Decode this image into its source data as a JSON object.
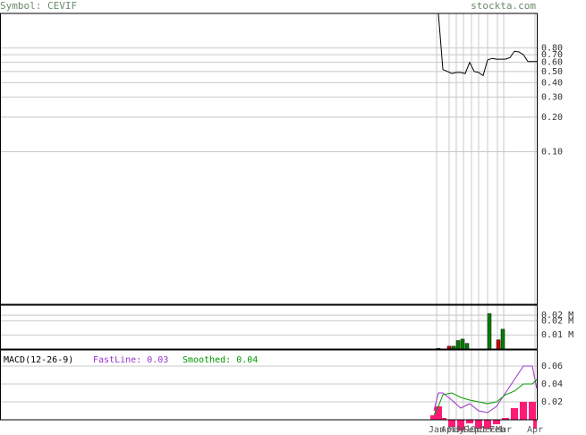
{
  "header": {
    "symbol": "Symbol: CEVIF",
    "site": "stockta.com"
  },
  "chart_data": [
    {
      "type": "line",
      "log_scale": true,
      "grid": true,
      "color": "#000000",
      "xlim": [
        0,
        120
      ],
      "x": [
        98,
        99,
        100,
        101,
        102,
        103,
        104,
        105,
        106,
        107,
        108,
        109,
        110,
        111,
        112,
        113,
        114,
        115,
        116,
        117,
        118,
        119,
        120
      ],
      "values": [
        1.6,
        0.52,
        0.5,
        0.48,
        0.49,
        0.49,
        0.48,
        0.6,
        0.5,
        0.49,
        0.46,
        0.63,
        0.65,
        0.64,
        0.64,
        0.64,
        0.66,
        0.75,
        0.74,
        0.7,
        0.61,
        0.61,
        0.61
      ],
      "ylim": [
        0.0047,
        1.6
      ],
      "yticks": [
        {
          "value": 0.8,
          "label": "0.80"
        },
        {
          "value": 0.7,
          "label": "0.70"
        },
        {
          "value": 0.6,
          "label": "0.60"
        },
        {
          "value": 0.5,
          "label": "0.50"
        },
        {
          "value": 0.4,
          "label": "0.40"
        },
        {
          "value": 0.3,
          "label": "0.30"
        },
        {
          "value": 0.2,
          "label": "0.20"
        },
        {
          "value": 0.1,
          "label": "0.10"
        }
      ]
    },
    {
      "type": "bar",
      "grid": true,
      "xlim": [
        0,
        120
      ],
      "x": [
        98,
        100.4,
        101.4,
        102.4,
        103.4,
        104.4,
        109.4,
        111.4,
        112.4
      ],
      "values": [
        0.0005,
        0.002,
        0.002,
        0.006,
        0.007,
        0.004,
        0.025,
        0.0065,
        0.014
      ],
      "colors": [
        "#008000",
        "#cc0000",
        "#008000",
        "#008000",
        "#008000",
        "#008000",
        "#008000",
        "#cc0000",
        "#008000"
      ],
      "ylim": [
        0,
        0.031
      ],
      "yticks": [
        {
          "value": 0.024,
          "label": "0.02 M"
        },
        {
          "value": 0.02,
          "label": "0.02 M"
        },
        {
          "value": 0.01,
          "label": "0.01 M"
        }
      ]
    },
    {
      "type": "line",
      "grid": true,
      "title": "MACD(12-26-9)",
      "xlim": [
        0,
        120
      ],
      "x": [
        97,
        98,
        99,
        101,
        103,
        105,
        107,
        109,
        111,
        113,
        115,
        117,
        119,
        120
      ],
      "series": [
        {
          "name": "FastLine: 0.03",
          "color": "#9933cc",
          "values": [
            0.01,
            0.03,
            0.03,
            0.022,
            0.013,
            0.018,
            0.01,
            0.008,
            0.015,
            0.03,
            0.045,
            0.06,
            0.06,
            0.035
          ]
        },
        {
          "name": "Smoothed: 0.04",
          "color": "#009900",
          "values": [
            0.005,
            0.015,
            0.028,
            0.03,
            0.025,
            0.022,
            0.02,
            0.018,
            0.02,
            0.028,
            0.032,
            0.04,
            0.04,
            0.045
          ]
        }
      ],
      "histogram": {
        "color": "#ff1a75",
        "values": [
          0.005,
          0.015,
          0.002,
          -0.008,
          -0.012,
          -0.004,
          -0.01,
          -0.01,
          -0.005,
          0.002,
          0.013,
          0.02,
          0.02,
          -0.01
        ]
      },
      "ylim": [
        0,
        0.078
      ],
      "yticks": [
        {
          "value": 0.06,
          "label": "0.06"
        },
        {
          "value": 0.04,
          "label": "0.04"
        },
        {
          "value": 0.02,
          "label": "0.02"
        }
      ],
      "xticks": [
        {
          "value": 97.6,
          "label": "Jan"
        },
        {
          "value": 100.4,
          "label": "Apr"
        },
        {
          "value": 102,
          "label": "May"
        },
        {
          "value": 103.6,
          "label": "Jul"
        },
        {
          "value": 105.4,
          "label": "Sep"
        },
        {
          "value": 107,
          "label": "Oct"
        },
        {
          "value": 109,
          "label": "Dec"
        },
        {
          "value": 111.2,
          "label": "Feb"
        },
        {
          "value": 112.6,
          "label": "Mar"
        },
        {
          "value": 119.6,
          "label": "Apr"
        }
      ]
    }
  ]
}
